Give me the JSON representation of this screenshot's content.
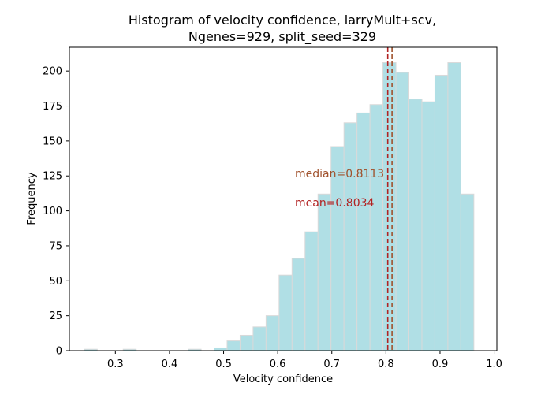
{
  "chart_data": {
    "type": "bar",
    "title_lines": [
      "Histogram of velocity confidence, larryMult+scv,",
      "Ngenes=929, split_seed=329"
    ],
    "xlabel": "Velocity confidence",
    "ylabel": "Frequency",
    "xlim": [
      0.215,
      1.005
    ],
    "ylim": [
      0,
      217
    ],
    "x_ticks": [
      {
        "value": 0.3,
        "label": "0.3"
      },
      {
        "value": 0.4,
        "label": "0.4"
      },
      {
        "value": 0.5,
        "label": "0.5"
      },
      {
        "value": 0.6,
        "label": "0.6"
      },
      {
        "value": 0.7,
        "label": "0.7"
      },
      {
        "value": 0.8,
        "label": "0.8"
      },
      {
        "value": 0.9,
        "label": "0.9"
      },
      {
        "value": 1.0,
        "label": "1.0"
      }
    ],
    "y_ticks": [
      {
        "value": 0,
        "label": "0"
      },
      {
        "value": 25,
        "label": "25"
      },
      {
        "value": 50,
        "label": "50"
      },
      {
        "value": 75,
        "label": "75"
      },
      {
        "value": 100,
        "label": "100"
      },
      {
        "value": 125,
        "label": "125"
      },
      {
        "value": 150,
        "label": "150"
      },
      {
        "value": 175,
        "label": "175"
      },
      {
        "value": 200,
        "label": "200"
      }
    ],
    "bins": [
      {
        "x0": 0.2425,
        "x1": 0.2665,
        "count": 1
      },
      {
        "x0": 0.2665,
        "x1": 0.2905,
        "count": 0
      },
      {
        "x0": 0.2905,
        "x1": 0.3145,
        "count": 0
      },
      {
        "x0": 0.3145,
        "x1": 0.3385,
        "count": 1
      },
      {
        "x0": 0.3385,
        "x1": 0.3625,
        "count": 0
      },
      {
        "x0": 0.3625,
        "x1": 0.3865,
        "count": 0
      },
      {
        "x0": 0.3865,
        "x1": 0.4105,
        "count": 0
      },
      {
        "x0": 0.4105,
        "x1": 0.4345,
        "count": 0
      },
      {
        "x0": 0.4345,
        "x1": 0.4585,
        "count": 1
      },
      {
        "x0": 0.4585,
        "x1": 0.4825,
        "count": 0
      },
      {
        "x0": 0.4825,
        "x1": 0.5065,
        "count": 2
      },
      {
        "x0": 0.5065,
        "x1": 0.5305,
        "count": 7
      },
      {
        "x0": 0.5305,
        "x1": 0.5545,
        "count": 11
      },
      {
        "x0": 0.5545,
        "x1": 0.5785,
        "count": 17
      },
      {
        "x0": 0.5785,
        "x1": 0.6025,
        "count": 25
      },
      {
        "x0": 0.6025,
        "x1": 0.6265,
        "count": 54
      },
      {
        "x0": 0.6265,
        "x1": 0.6505,
        "count": 66
      },
      {
        "x0": 0.6505,
        "x1": 0.6745,
        "count": 85
      },
      {
        "x0": 0.6745,
        "x1": 0.6985,
        "count": 112
      },
      {
        "x0": 0.6985,
        "x1": 0.7225,
        "count": 146
      },
      {
        "x0": 0.7225,
        "x1": 0.7465,
        "count": 163
      },
      {
        "x0": 0.7465,
        "x1": 0.7705,
        "count": 170
      },
      {
        "x0": 0.7705,
        "x1": 0.7945,
        "count": 176
      },
      {
        "x0": 0.7945,
        "x1": 0.8185,
        "count": 206
      },
      {
        "x0": 0.8185,
        "x1": 0.8425,
        "count": 199
      },
      {
        "x0": 0.8425,
        "x1": 0.8665,
        "count": 180
      },
      {
        "x0": 0.8665,
        "x1": 0.8905,
        "count": 178
      },
      {
        "x0": 0.8905,
        "x1": 0.9145,
        "count": 197
      },
      {
        "x0": 0.9145,
        "x1": 0.9385,
        "count": 206
      },
      {
        "x0": 0.9385,
        "x1": 0.9625,
        "count": 112
      }
    ],
    "bar_color": "#b0dfe5",
    "bar_edge_color": "#d9d9d9",
    "median": {
      "value": 0.8113,
      "label": "median=0.8113",
      "color": "#a0522d"
    },
    "mean": {
      "value": 0.8034,
      "label": "mean=0.8034",
      "color": "#b22222"
    },
    "grid": false
  }
}
